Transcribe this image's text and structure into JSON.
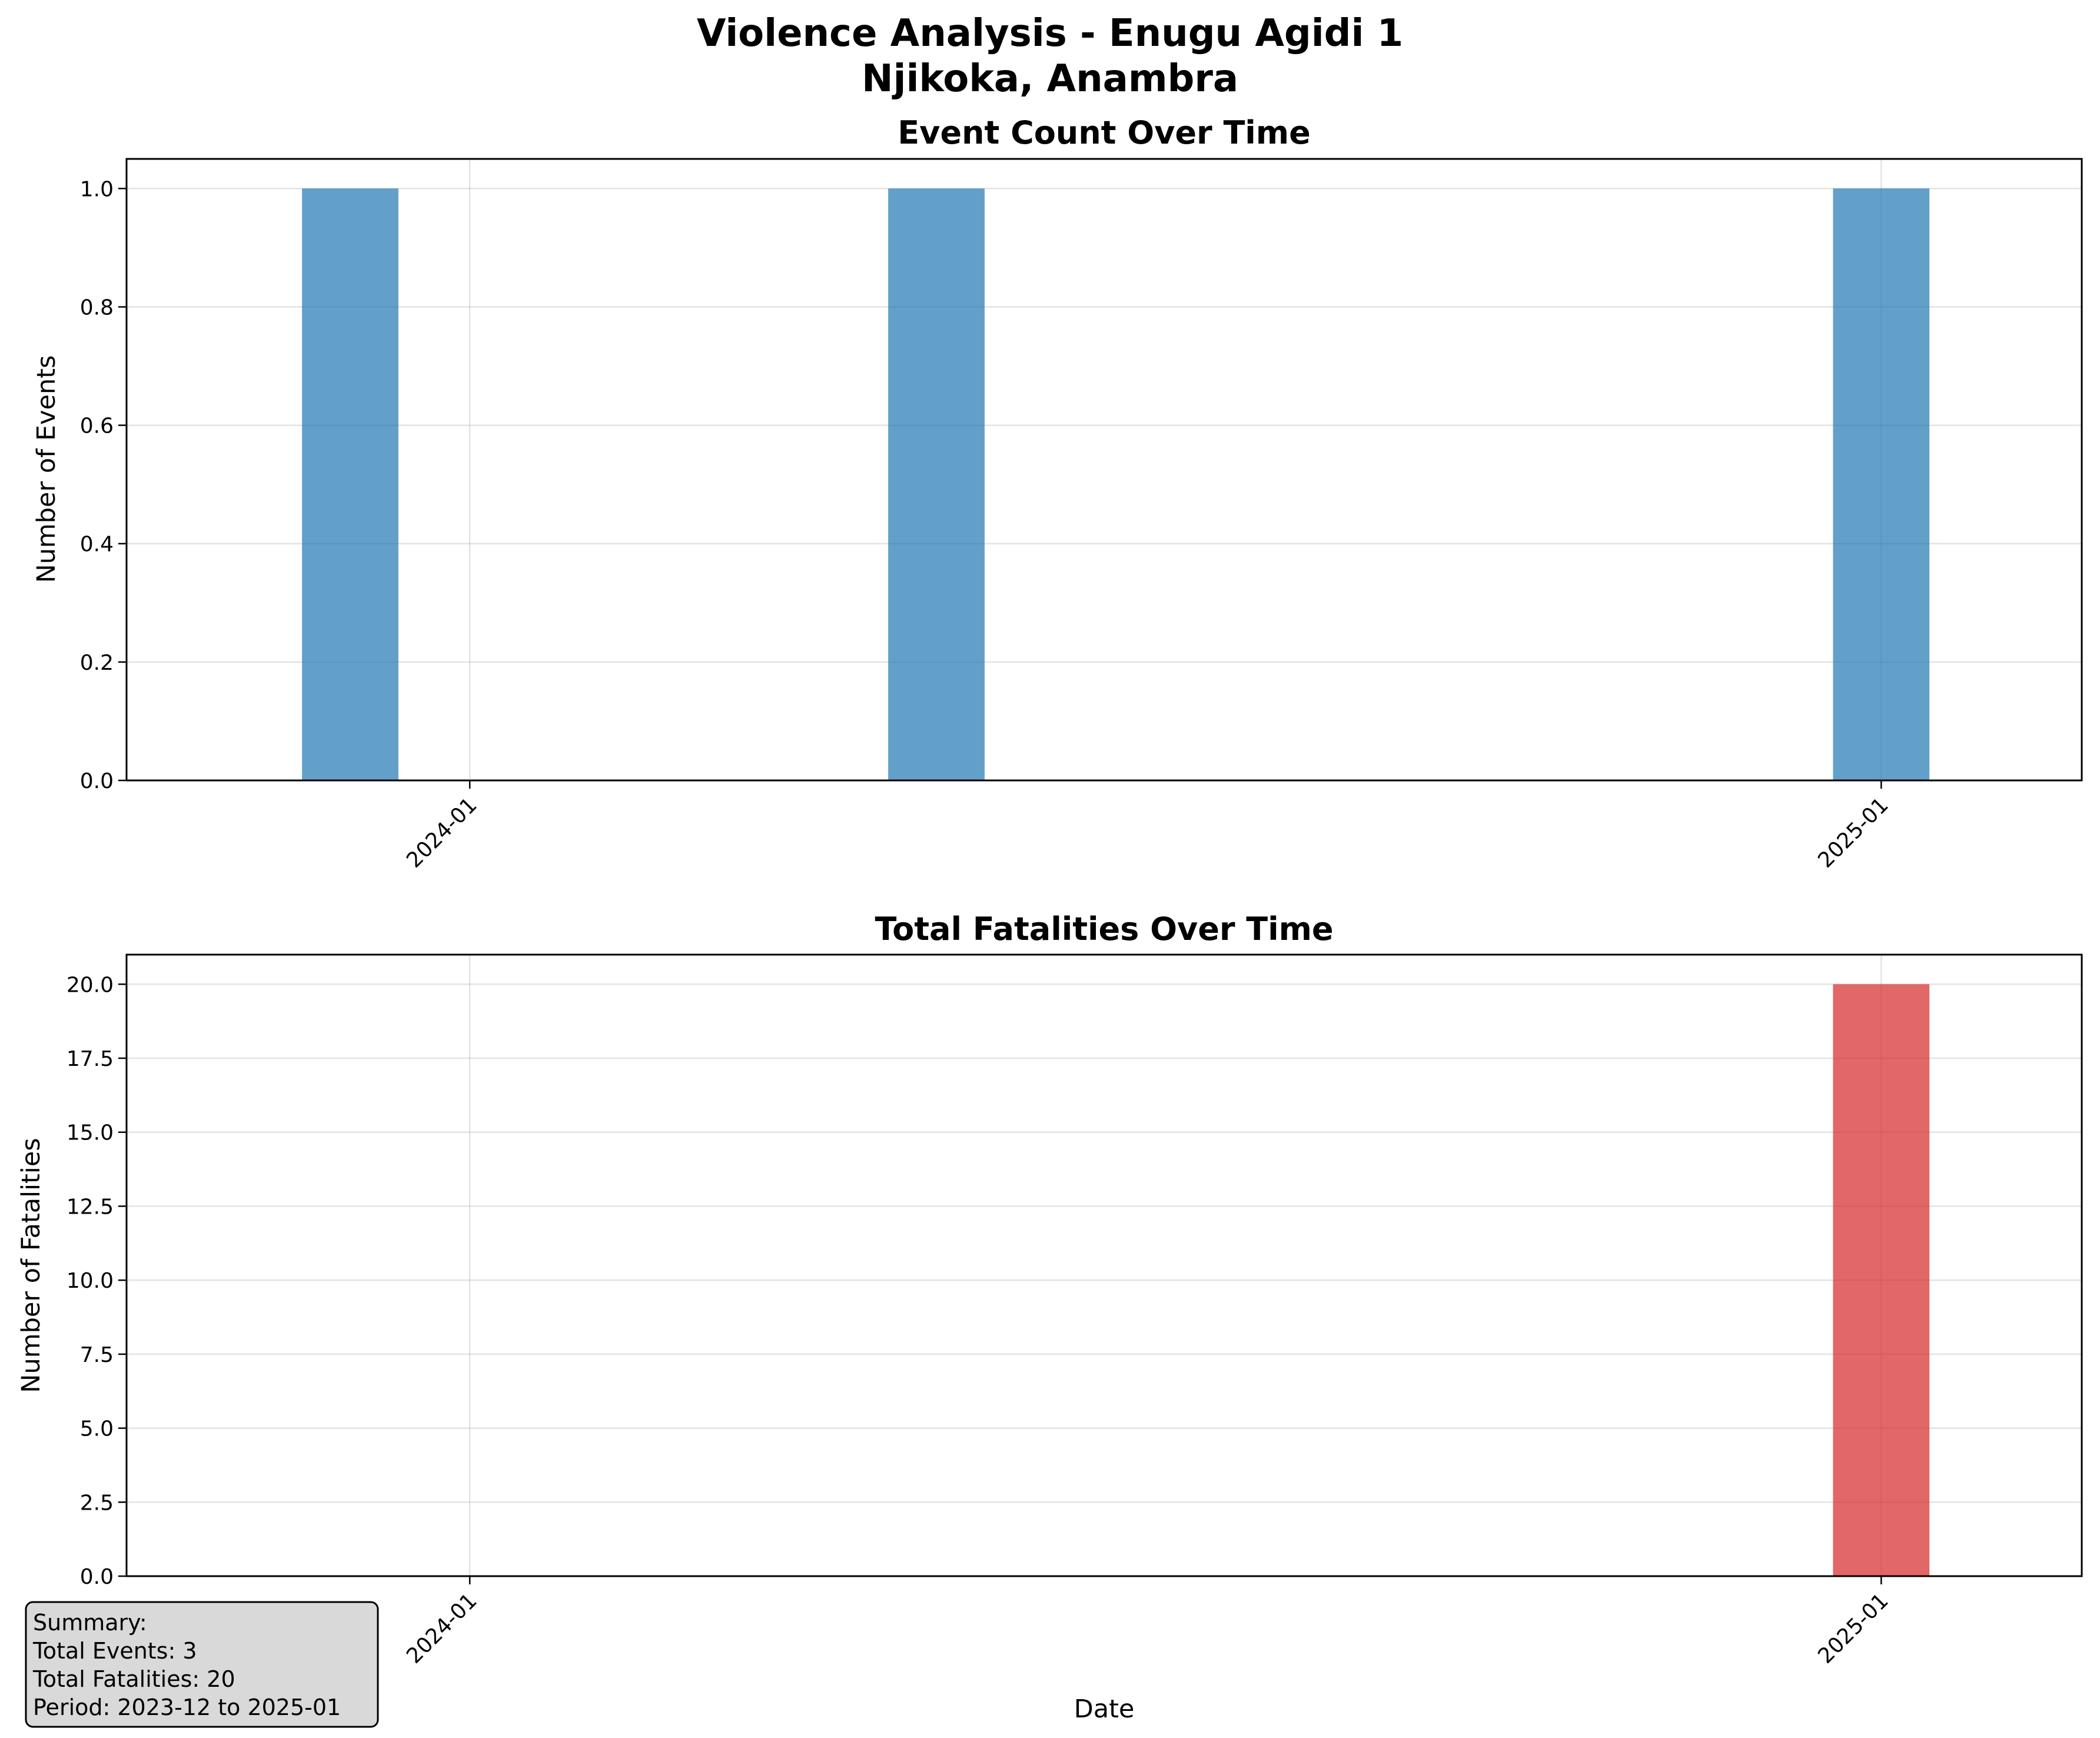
{
  "figure": {
    "title_line1": "Violence Analysis - Enugu Agidi 1",
    "title_line2": "Njikoka, Anambra"
  },
  "chart_data": [
    {
      "type": "bar",
      "title": "Event Count Over Time",
      "xlabel": "",
      "ylabel": "Number of Events",
      "x": [
        "2023-12",
        "2024-05",
        "2025-01"
      ],
      "values": [
        1,
        1,
        1
      ],
      "color": "#1f77b4",
      "opacity": 0.7,
      "xlim": [
        "2023-10-04",
        "2025-02-22"
      ],
      "ylim": [
        0,
        1.05
      ],
      "yticks": [
        0.0,
        0.2,
        0.4,
        0.6,
        0.8,
        1.0
      ],
      "ytick_labels": [
        "0.0",
        "0.2",
        "0.4",
        "0.6",
        "0.8",
        "1.0"
      ],
      "xticks": [
        "2024-01-01",
        "2025-01-01"
      ],
      "xtick_labels": [
        "2024-01",
        "2025-01"
      ],
      "grid": true
    },
    {
      "type": "bar",
      "title": "Total Fatalities Over Time",
      "xlabel": "Date",
      "ylabel": "Number of Fatalities",
      "x": [
        "2023-12",
        "2024-05",
        "2025-01"
      ],
      "values": [
        0,
        0,
        20
      ],
      "color": "#d62728",
      "opacity": 0.7,
      "xlim": [
        "2023-10-04",
        "2025-02-22"
      ],
      "ylim": [
        0,
        21
      ],
      "yticks": [
        0.0,
        2.5,
        5.0,
        7.5,
        10.0,
        12.5,
        15.0,
        17.5,
        20.0
      ],
      "ytick_labels": [
        "0.0",
        "2.5",
        "5.0",
        "7.5",
        "10.0",
        "12.5",
        "15.0",
        "17.5",
        "20.0"
      ],
      "xticks": [
        "2024-01-01",
        "2025-01-01"
      ],
      "xtick_labels": [
        "2024-01",
        "2025-01"
      ],
      "grid": true
    }
  ],
  "summary": {
    "heading": "Summary:",
    "total_events": "Total Events: 3",
    "total_fatalities": "Total Fatalities: 20",
    "period": "Period: 2023-12 to 2025-01"
  }
}
